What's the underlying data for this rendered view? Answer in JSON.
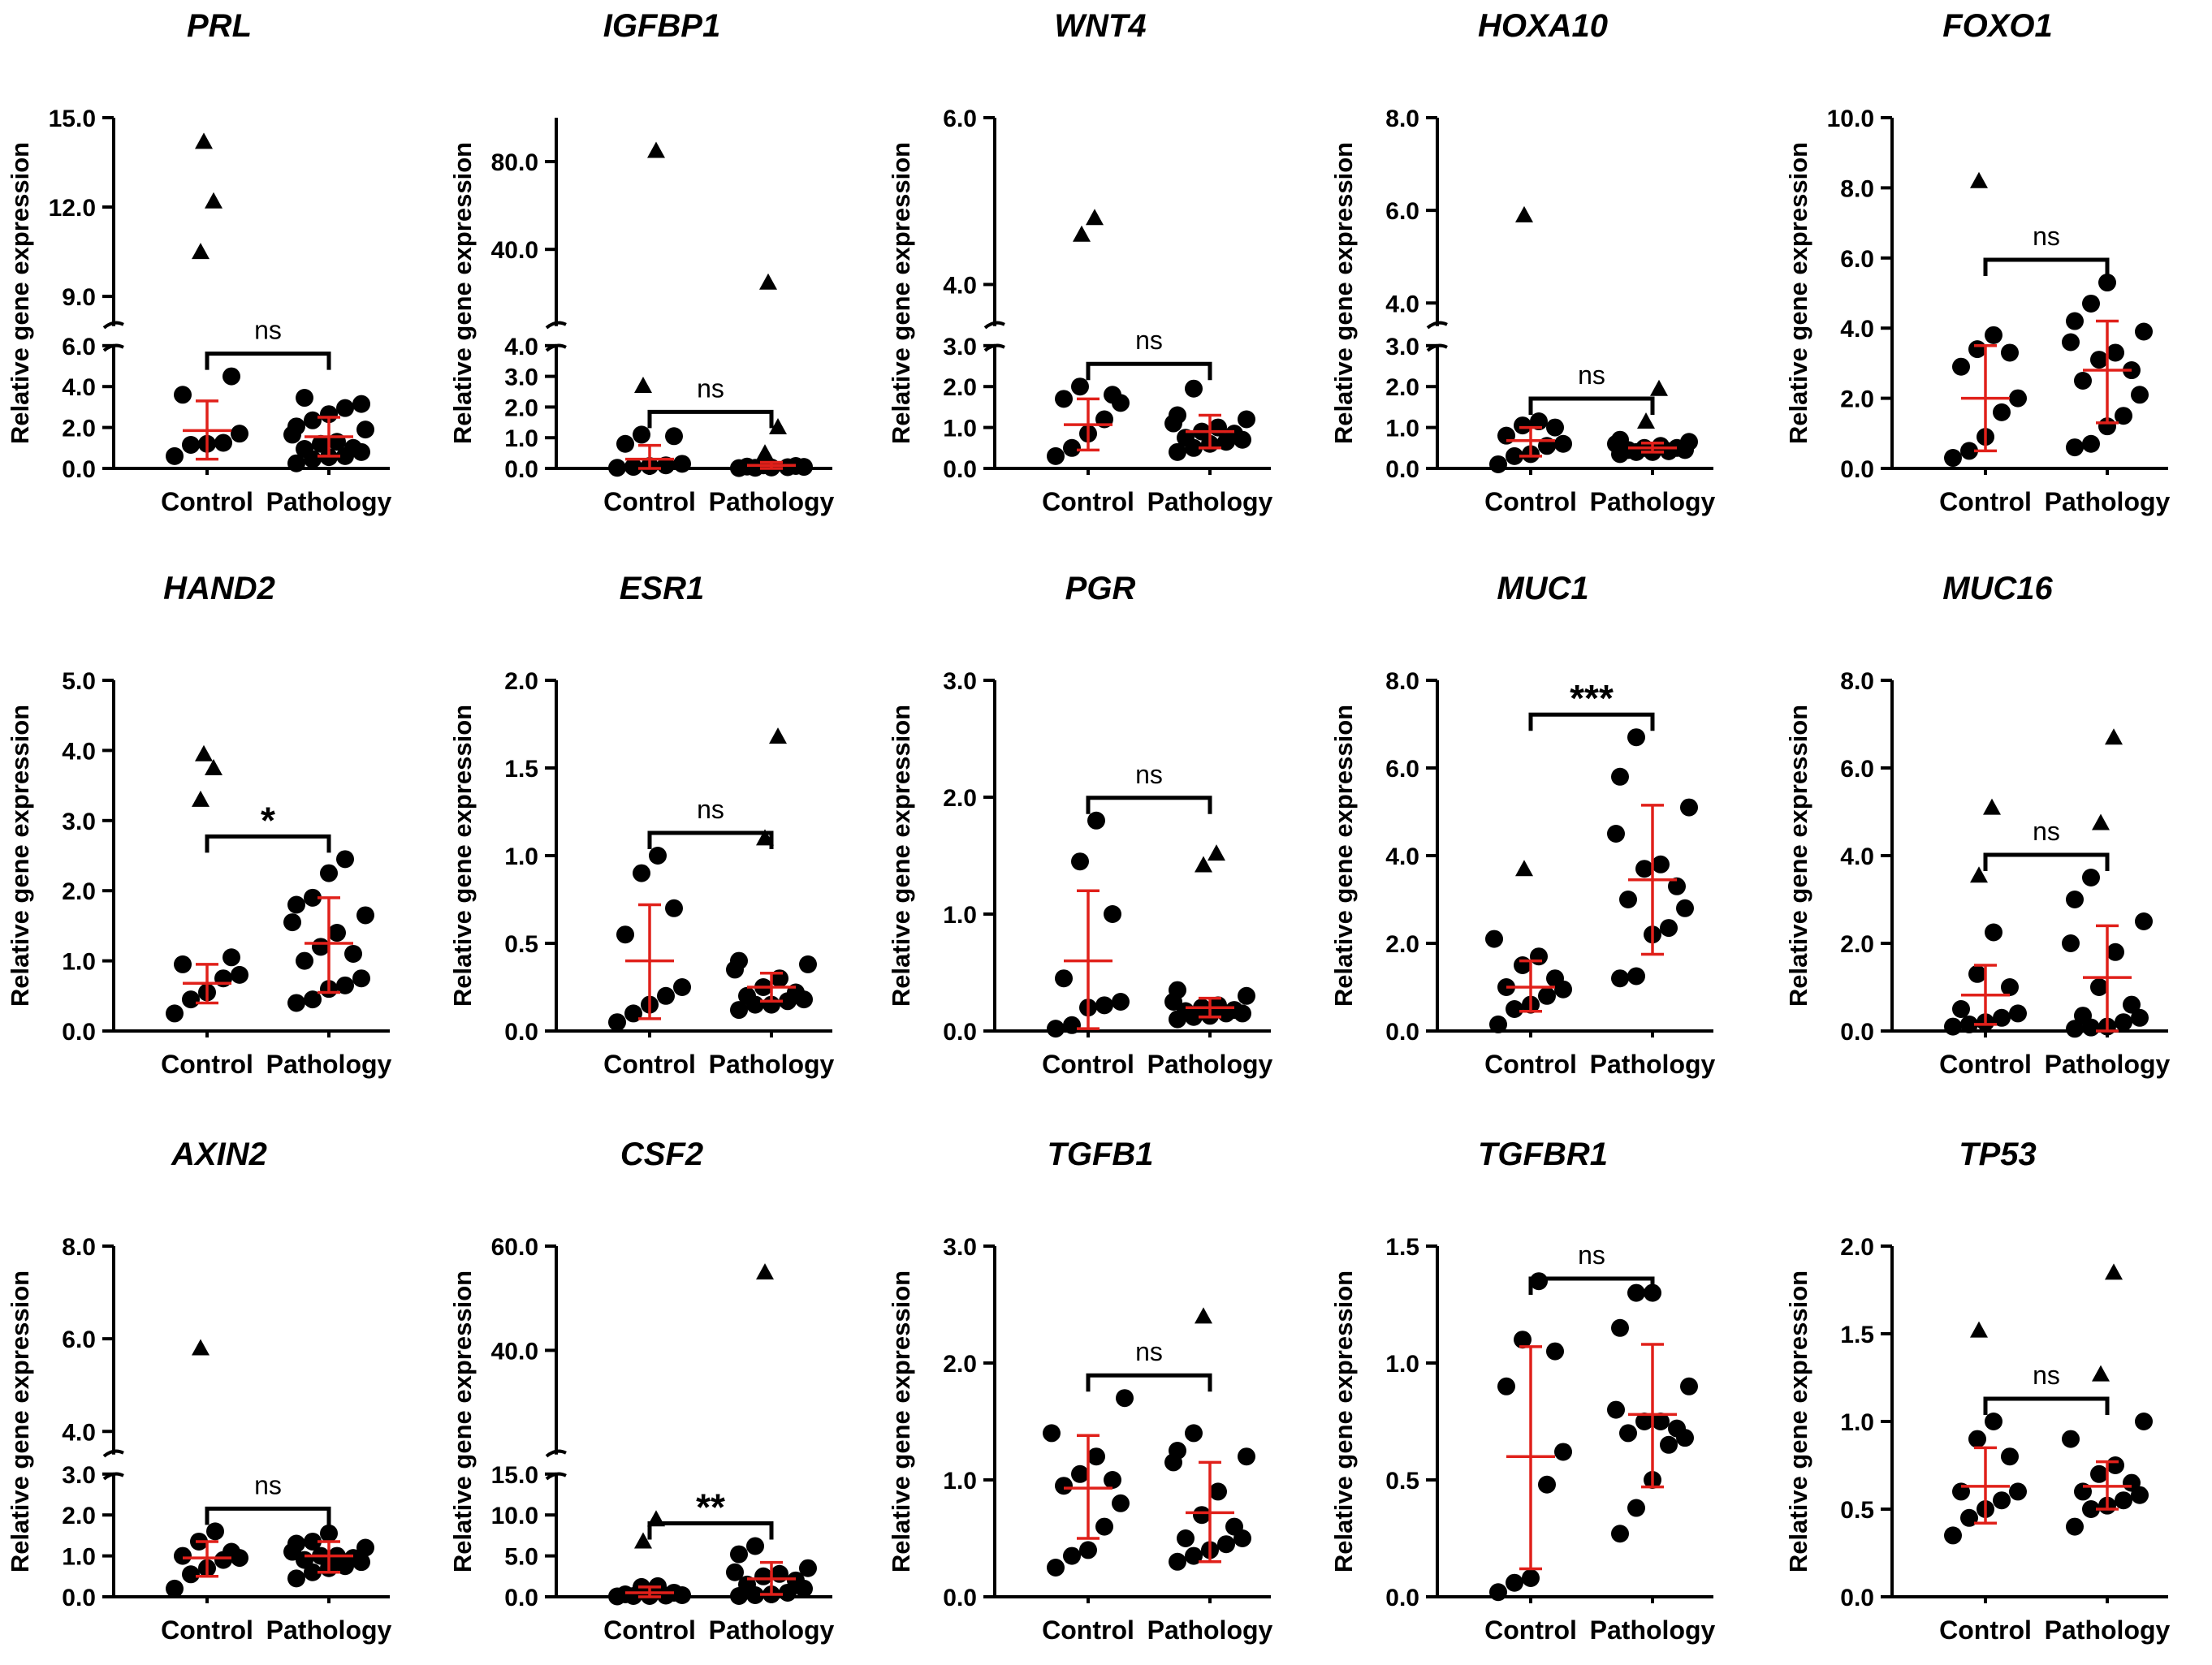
{
  "y_axis_label": "Relative gene expression",
  "groups": [
    "Control",
    "Pathology"
  ],
  "colors": {
    "points": "#000000",
    "error_bars": "#e0201a"
  },
  "chart_data": [
    {
      "type": "scatter",
      "title": "PRL",
      "significance": "ns",
      "axis": {
        "lower": [
          0,
          6
        ],
        "lower_ticks": [
          "0.0",
          "2.0",
          "4.0",
          "6.0"
        ],
        "upper": [
          8,
          15
        ],
        "upper_ticks": [
          "9.0",
          "12.0",
          "15.0"
        ]
      },
      "series": [
        {
          "name": "Control",
          "values": [
            0.6,
            1.15,
            1.2,
            1.25,
            1.7,
            3.6,
            4.5
          ],
          "outliers": [
            10.5,
            12.2,
            14.2
          ],
          "mean": 1.85,
          "sd_low": 0.45,
          "sd_high": 3.3
        },
        {
          "name": "Pathology",
          "values": [
            0.25,
            0.45,
            0.55,
            0.6,
            0.8,
            0.95,
            1.0,
            1.2,
            1.3,
            1.65,
            1.9,
            2.05,
            2.35,
            2.65,
            2.95,
            3.15,
            3.45
          ],
          "outliers": [],
          "mean": 1.55,
          "sd_low": 0.6,
          "sd_high": 2.5
        }
      ]
    },
    {
      "type": "scatter",
      "title": "IGFBP1",
      "significance": "ns",
      "axis": {
        "lower": [
          0,
          4
        ],
        "lower_ticks": [
          "0.0",
          "1.0",
          "2.0",
          "3.0",
          "4.0"
        ],
        "upper": [
          5,
          100
        ],
        "upper_ticks": [
          "40.0",
          "80.0"
        ]
      },
      "series": [
        {
          "name": "Control",
          "values": [
            0.02,
            0.05,
            0.08,
            0.1,
            0.15,
            0.8,
            1.05,
            1.1
          ],
          "outliers": [
            2.7,
            85
          ],
          "mean": 0.3,
          "sd_low": 0.0,
          "sd_high": 0.75
        },
        {
          "name": "Pathology",
          "values": [
            0.01,
            0.02,
            0.03,
            0.04,
            0.05,
            0.06,
            0.08,
            0.1
          ],
          "outliers": [
            0.5,
            1.35,
            25
          ],
          "mean": 0.1,
          "sd_low": 0.0,
          "sd_high": 0.2
        }
      ]
    },
    {
      "type": "scatter",
      "title": "WNT4",
      "significance": "ns",
      "axis": {
        "lower": [
          0,
          3
        ],
        "lower_ticks": [
          "0.0",
          "1.0",
          "2.0",
          "3.0"
        ],
        "upper": [
          3.5,
          6
        ],
        "upper_ticks": [
          "4.0",
          "6.0"
        ]
      },
      "series": [
        {
          "name": "Control",
          "values": [
            0.3,
            0.5,
            0.85,
            1.2,
            1.6,
            1.7,
            1.8,
            2.0
          ],
          "outliers": [
            4.6,
            4.8
          ],
          "mean": 1.07,
          "sd_low": 0.45,
          "sd_high": 1.7
        },
        {
          "name": "Pathology",
          "values": [
            0.4,
            0.5,
            0.6,
            0.65,
            0.7,
            0.75,
            0.85,
            0.9,
            1.0,
            1.1,
            1.2,
            1.3,
            1.95
          ],
          "outliers": [],
          "mean": 0.9,
          "sd_low": 0.5,
          "sd_high": 1.3
        }
      ]
    },
    {
      "type": "scatter",
      "title": "HOXA10",
      "significance": "ns",
      "axis": {
        "lower": [
          0,
          3
        ],
        "lower_ticks": [
          "0.0",
          "1.0",
          "2.0",
          "3.0"
        ],
        "upper": [
          3.5,
          8
        ],
        "upper_ticks": [
          "4.0",
          "6.0",
          "8.0"
        ]
      },
      "series": [
        {
          "name": "Control",
          "values": [
            0.1,
            0.3,
            0.35,
            0.55,
            0.6,
            0.8,
            1.0,
            1.05,
            1.15
          ],
          "outliers": [
            5.9
          ],
          "mean": 0.68,
          "sd_low": 0.3,
          "sd_high": 1.0
        },
        {
          "name": "Pathology",
          "values": [
            0.35,
            0.4,
            0.4,
            0.42,
            0.45,
            0.45,
            0.5,
            0.5,
            0.55,
            0.6,
            0.65,
            0.7
          ],
          "outliers": [
            1.15,
            1.95
          ],
          "mean": 0.5,
          "sd_low": 0.4,
          "sd_high": 0.62
        }
      ]
    },
    {
      "type": "scatter",
      "title": "FOXO1",
      "significance": "ns",
      "axis": {
        "lower": [
          0,
          10
        ],
        "lower_ticks": [
          "0.0",
          "2.0",
          "4.0",
          "6.0",
          "8.0",
          "10.0"
        ]
      },
      "series": [
        {
          "name": "Control",
          "values": [
            0.3,
            0.5,
            0.9,
            1.6,
            2.0,
            2.9,
            3.3,
            3.4,
            3.8
          ],
          "outliers": [
            8.2
          ],
          "mean": 2.0,
          "sd_low": 0.5,
          "sd_high": 3.5
        },
        {
          "name": "Pathology",
          "values": [
            0.6,
            0.7,
            1.2,
            1.5,
            2.1,
            2.5,
            2.8,
            3.1,
            3.3,
            3.6,
            3.9,
            4.2,
            4.7,
            5.3
          ],
          "outliers": [],
          "mean": 2.8,
          "sd_low": 1.3,
          "sd_high": 4.2
        }
      ]
    },
    {
      "type": "scatter",
      "title": "HAND2",
      "significance": "*",
      "axis": {
        "lower": [
          0,
          5
        ],
        "lower_ticks": [
          "0.0",
          "1.0",
          "2.0",
          "3.0",
          "4.0",
          "5.0"
        ]
      },
      "series": [
        {
          "name": "Control",
          "values": [
            0.25,
            0.45,
            0.55,
            0.75,
            0.8,
            0.95,
            1.05
          ],
          "outliers": [
            3.3,
            3.75,
            3.95
          ],
          "mean": 0.68,
          "sd_low": 0.4,
          "sd_high": 0.95
        },
        {
          "name": "Pathology",
          "values": [
            0.4,
            0.45,
            0.6,
            0.65,
            0.75,
            1.0,
            1.1,
            1.2,
            1.4,
            1.55,
            1.65,
            1.8,
            1.9,
            2.25,
            2.45
          ],
          "outliers": [],
          "mean": 1.25,
          "sd_low": 0.55,
          "sd_high": 1.9
        }
      ]
    },
    {
      "type": "scatter",
      "title": "ESR1",
      "significance": "ns",
      "axis": {
        "lower": [
          0,
          2
        ],
        "lower_ticks": [
          "0.0",
          "0.5",
          "1.0",
          "1.5",
          "2.0"
        ]
      },
      "series": [
        {
          "name": "Control",
          "values": [
            0.05,
            0.1,
            0.15,
            0.2,
            0.25,
            0.55,
            0.7,
            0.9,
            1.0
          ],
          "outliers": [],
          "mean": 0.4,
          "sd_low": 0.07,
          "sd_high": 0.72
        },
        {
          "name": "Pathology",
          "values": [
            0.12,
            0.15,
            0.15,
            0.17,
            0.18,
            0.2,
            0.22,
            0.25,
            0.3,
            0.35,
            0.38,
            0.4
          ],
          "outliers": [
            1.1,
            1.68
          ],
          "mean": 0.25,
          "sd_low": 0.17,
          "sd_high": 0.33
        }
      ]
    },
    {
      "type": "scatter",
      "title": "PGR",
      "significance": "ns",
      "axis": {
        "lower": [
          0,
          3
        ],
        "lower_ticks": [
          "0.0",
          "1.0",
          "2.0",
          "3.0"
        ]
      },
      "series": [
        {
          "name": "Control",
          "values": [
            0.02,
            0.05,
            0.2,
            0.22,
            0.25,
            0.45,
            1.0,
            1.45,
            1.8
          ],
          "outliers": [],
          "mean": 0.6,
          "sd_low": 0.02,
          "sd_high": 1.2
        },
        {
          "name": "Pathology",
          "values": [
            0.1,
            0.12,
            0.13,
            0.15,
            0.15,
            0.17,
            0.18,
            0.2,
            0.22,
            0.25,
            0.3,
            0.35
          ],
          "outliers": [
            1.42,
            1.52
          ],
          "mean": 0.2,
          "sd_low": 0.12,
          "sd_high": 0.28
        }
      ]
    },
    {
      "type": "scatter",
      "title": "MUC1",
      "significance": "***",
      "axis": {
        "lower": [
          0,
          8
        ],
        "lower_ticks": [
          "0.0",
          "2.0",
          "4.0",
          "6.0",
          "8.0"
        ]
      },
      "series": [
        {
          "name": "Control",
          "values": [
            0.15,
            0.5,
            0.6,
            0.8,
            0.95,
            1.0,
            1.2,
            1.5,
            1.7,
            2.1
          ],
          "outliers": [
            3.7
          ],
          "mean": 1.0,
          "sd_low": 0.45,
          "sd_high": 1.6
        },
        {
          "name": "Pathology",
          "values": [
            1.2,
            1.25,
            2.2,
            2.35,
            2.8,
            3.0,
            3.3,
            3.7,
            3.8,
            4.5,
            5.1,
            5.8,
            6.7
          ],
          "outliers": [],
          "mean": 3.45,
          "sd_low": 1.75,
          "sd_high": 5.15
        }
      ]
    },
    {
      "type": "scatter",
      "title": "MUC16",
      "significance": "ns",
      "axis": {
        "lower": [
          0,
          8
        ],
        "lower_ticks": [
          "0.0",
          "2.0",
          "4.0",
          "6.0",
          "8.0"
        ]
      },
      "series": [
        {
          "name": "Control",
          "values": [
            0.1,
            0.15,
            0.2,
            0.3,
            0.4,
            0.5,
            1.0,
            1.3,
            2.25
          ],
          "outliers": [
            3.55,
            5.1
          ],
          "mean": 0.82,
          "sd_low": 0.15,
          "sd_high": 1.5
        },
        {
          "name": "Pathology",
          "values": [
            0.05,
            0.08,
            0.1,
            0.2,
            0.3,
            0.35,
            0.6,
            1.0,
            1.8,
            2.0,
            2.5,
            3.0,
            3.5
          ],
          "outliers": [
            4.75,
            6.7
          ],
          "mean": 1.22,
          "sd_low": 0.0,
          "sd_high": 2.4
        }
      ]
    },
    {
      "type": "scatter",
      "title": "AXIN2",
      "significance": "ns",
      "axis": {
        "lower": [
          0,
          3
        ],
        "lower_ticks": [
          "0.0",
          "1.0",
          "2.0",
          "3.0"
        ],
        "upper": [
          3.5,
          8
        ],
        "upper_ticks": [
          "4.0",
          "6.0",
          "8.0"
        ]
      },
      "series": [
        {
          "name": "Control",
          "values": [
            0.2,
            0.55,
            0.7,
            0.9,
            0.95,
            1.0,
            1.1,
            1.35,
            1.6
          ],
          "outliers": [
            5.8
          ],
          "mean": 0.95,
          "sd_low": 0.5,
          "sd_high": 1.35
        },
        {
          "name": "Pathology",
          "values": [
            0.45,
            0.6,
            0.7,
            0.75,
            0.85,
            0.9,
            0.95,
            1.0,
            1.0,
            1.1,
            1.2,
            1.3,
            1.35,
            1.55
          ],
          "outliers": [],
          "mean": 1.0,
          "sd_low": 0.6,
          "sd_high": 1.35
        }
      ]
    },
    {
      "type": "scatter",
      "title": "CSF2",
      "significance": "**",
      "axis": {
        "lower": [
          0,
          15
        ],
        "lower_ticks": [
          "0.0",
          "5.0",
          "10.0",
          "15.0"
        ],
        "upper": [
          20,
          60
        ],
        "upper_ticks": [
          "40.0",
          "60.0"
        ]
      },
      "series": [
        {
          "name": "Control",
          "values": [
            0.05,
            0.1,
            0.1,
            0.15,
            0.2,
            0.3,
            0.5,
            1.2,
            1.3
          ],
          "outliers": [
            6.8,
            9.5
          ],
          "mean": 0.5,
          "sd_low": 0.0,
          "sd_high": 1.2
        },
        {
          "name": "Pathology",
          "values": [
            0.1,
            0.2,
            0.3,
            0.5,
            1.0,
            1.5,
            2.0,
            2.5,
            2.8,
            3.0,
            3.5,
            5.2,
            6.2
          ],
          "outliers": [
            55
          ],
          "mean": 2.2,
          "sd_low": 0.3,
          "sd_high": 4.2
        }
      ]
    },
    {
      "type": "scatter",
      "title": "TGFB1",
      "significance": "ns",
      "axis": {
        "lower": [
          0,
          3
        ],
        "lower_ticks": [
          "0.0",
          "1.0",
          "2.0",
          "3.0"
        ]
      },
      "series": [
        {
          "name": "Control",
          "values": [
            0.25,
            0.35,
            0.4,
            0.6,
            0.8,
            0.95,
            1.0,
            1.05,
            1.2,
            1.4,
            1.7
          ],
          "outliers": [],
          "mean": 0.93,
          "sd_low": 0.5,
          "sd_high": 1.38
        },
        {
          "name": "Pathology",
          "values": [
            0.3,
            0.35,
            0.4,
            0.45,
            0.5,
            0.5,
            0.6,
            0.7,
            0.9,
            1.15,
            1.2,
            1.25,
            1.4
          ],
          "outliers": [
            2.4
          ],
          "mean": 0.72,
          "sd_low": 0.3,
          "sd_high": 1.15
        }
      ]
    },
    {
      "type": "scatter",
      "title": "TGFBR1",
      "significance": "ns",
      "axis": {
        "lower": [
          0,
          1.5
        ],
        "lower_ticks": [
          "0.0",
          "0.5",
          "1.0",
          "1.5"
        ]
      },
      "series": [
        {
          "name": "Control",
          "values": [
            0.02,
            0.06,
            0.08,
            0.48,
            0.62,
            0.9,
            1.05,
            1.1,
            1.35
          ],
          "outliers": [],
          "mean": 0.6,
          "sd_low": 0.12,
          "sd_high": 1.07
        },
        {
          "name": "Pathology",
          "values": [
            0.27,
            0.38,
            0.5,
            0.65,
            0.68,
            0.7,
            0.72,
            0.75,
            0.75,
            0.8,
            0.9,
            1.15,
            1.3,
            1.3
          ],
          "outliers": [],
          "mean": 0.78,
          "sd_low": 0.47,
          "sd_high": 1.08
        }
      ]
    },
    {
      "type": "scatter",
      "title": "TP53",
      "significance": "ns",
      "axis": {
        "lower": [
          0,
          2
        ],
        "lower_ticks": [
          "0.0",
          "0.5",
          "1.0",
          "1.5",
          "2.0"
        ]
      },
      "series": [
        {
          "name": "Control",
          "values": [
            0.35,
            0.45,
            0.5,
            0.55,
            0.6,
            0.6,
            0.8,
            0.9,
            1.0
          ],
          "outliers": [
            1.52
          ],
          "mean": 0.63,
          "sd_low": 0.42,
          "sd_high": 0.85
        },
        {
          "name": "Pathology",
          "values": [
            0.4,
            0.5,
            0.52,
            0.55,
            0.58,
            0.6,
            0.65,
            0.7,
            0.75,
            0.9,
            1.0
          ],
          "outliers": [
            1.27,
            1.85
          ],
          "mean": 0.63,
          "sd_low": 0.5,
          "sd_high": 0.77
        }
      ]
    }
  ]
}
